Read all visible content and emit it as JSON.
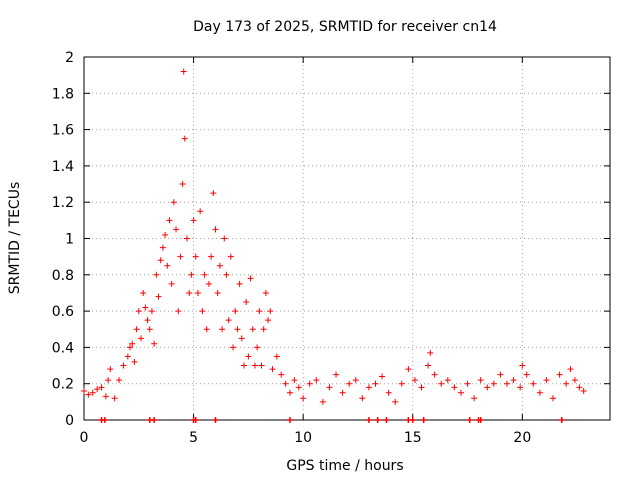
{
  "chart_data": {
    "type": "scatter",
    "title": "Day 173 of 2025, SRMTID for receiver cn14",
    "xlabel": "GPS time / hours",
    "ylabel": "SRMTID / TECUs",
    "xlim": [
      0,
      24
    ],
    "ylim": [
      0,
      2
    ],
    "xticks": [
      0,
      5,
      10,
      15,
      20
    ],
    "xtick_labels": [
      "0",
      "5",
      "10",
      "15",
      "20"
    ],
    "yticks": [
      0,
      0.2,
      0.4,
      0.6,
      0.8,
      1,
      1.2,
      1.4,
      1.6,
      1.8,
      2
    ],
    "ytick_labels": [
      "0",
      "0.2",
      "0.4",
      "0.6",
      "0.8",
      "1",
      "1.2",
      "1.4",
      "1.6",
      "1.8",
      "2"
    ],
    "grid": true,
    "marker": "+",
    "series": [
      {
        "name": "cn14",
        "color": "#ff0000",
        "x": [
          0.0,
          0.2,
          0.4,
          0.6,
          0.8,
          1.0,
          1.1,
          1.2,
          1.4,
          1.6,
          1.8,
          2.0,
          2.1,
          2.2,
          2.3,
          2.4,
          2.5,
          2.6,
          2.7,
          2.8,
          2.9,
          3.0,
          3.1,
          3.2,
          3.3,
          3.4,
          3.5,
          3.6,
          3.7,
          3.8,
          3.9,
          4.0,
          4.1,
          4.2,
          4.3,
          4.4,
          4.5,
          4.55,
          4.6,
          4.7,
          4.8,
          4.9,
          5.0,
          5.1,
          5.2,
          5.3,
          5.4,
          5.5,
          5.6,
          5.7,
          5.8,
          5.9,
          6.0,
          6.1,
          6.2,
          6.3,
          6.4,
          6.5,
          6.6,
          6.7,
          6.8,
          6.9,
          7.0,
          7.1,
          7.2,
          7.3,
          7.4,
          7.5,
          7.6,
          7.7,
          7.8,
          7.9,
          8.0,
          8.1,
          8.2,
          8.3,
          8.4,
          8.5,
          8.6,
          8.8,
          9.0,
          9.2,
          9.4,
          9.6,
          9.8,
          10.0,
          10.3,
          10.6,
          10.9,
          11.2,
          11.5,
          11.8,
          12.1,
          12.4,
          12.7,
          13.0,
          13.3,
          13.6,
          13.9,
          14.2,
          14.5,
          14.8,
          15.1,
          15.4,
          15.7,
          15.8,
          16.0,
          16.3,
          16.6,
          16.9,
          17.2,
          17.5,
          17.8,
          18.1,
          18.4,
          18.7,
          19.0,
          19.3,
          19.6,
          19.9,
          20.0,
          20.2,
          20.5,
          20.8,
          21.1,
          21.4,
          21.7,
          22.0,
          22.2,
          22.4,
          22.6,
          22.8
        ],
        "y": [
          0.16,
          0.14,
          0.15,
          0.17,
          0.18,
          0.13,
          0.22,
          0.28,
          0.12,
          0.22,
          0.3,
          0.35,
          0.4,
          0.42,
          0.32,
          0.5,
          0.6,
          0.45,
          0.7,
          0.62,
          0.55,
          0.5,
          0.6,
          0.42,
          0.8,
          0.68,
          0.88,
          0.95,
          1.02,
          0.85,
          1.1,
          0.75,
          1.2,
          1.05,
          0.6,
          0.9,
          1.3,
          1.92,
          1.55,
          1.0,
          0.7,
          0.8,
          1.1,
          0.9,
          0.7,
          1.15,
          0.6,
          0.8,
          0.5,
          0.75,
          0.9,
          1.25,
          1.05,
          0.7,
          0.85,
          0.5,
          1.0,
          0.8,
          0.55,
          0.9,
          0.4,
          0.6,
          0.5,
          0.75,
          0.45,
          0.3,
          0.65,
          0.35,
          0.78,
          0.5,
          0.3,
          0.4,
          0.6,
          0.3,
          0.5,
          0.7,
          0.55,
          0.6,
          0.28,
          0.35,
          0.25,
          0.2,
          0.15,
          0.22,
          0.18,
          0.12,
          0.2,
          0.22,
          0.1,
          0.18,
          0.25,
          0.15,
          0.2,
          0.22,
          0.12,
          0.18,
          0.2,
          0.24,
          0.15,
          0.1,
          0.2,
          0.28,
          0.22,
          0.18,
          0.3,
          0.37,
          0.25,
          0.2,
          0.22,
          0.18,
          0.15,
          0.2,
          0.12,
          0.22,
          0.18,
          0.2,
          0.25,
          0.2,
          0.22,
          0.18,
          0.3,
          0.25,
          0.2,
          0.15,
          0.22,
          0.12,
          0.25,
          0.2,
          0.28,
          0.22,
          0.18,
          0.16
        ]
      }
    ],
    "zero_markers_x": [
      0.8,
      0.95,
      3.0,
      3.2,
      5.0,
      5.1,
      6.0,
      9.4,
      13.0,
      13.4,
      13.8,
      14.8,
      15.0,
      15.5,
      17.6,
      18.0,
      18.1,
      21.8
    ]
  }
}
